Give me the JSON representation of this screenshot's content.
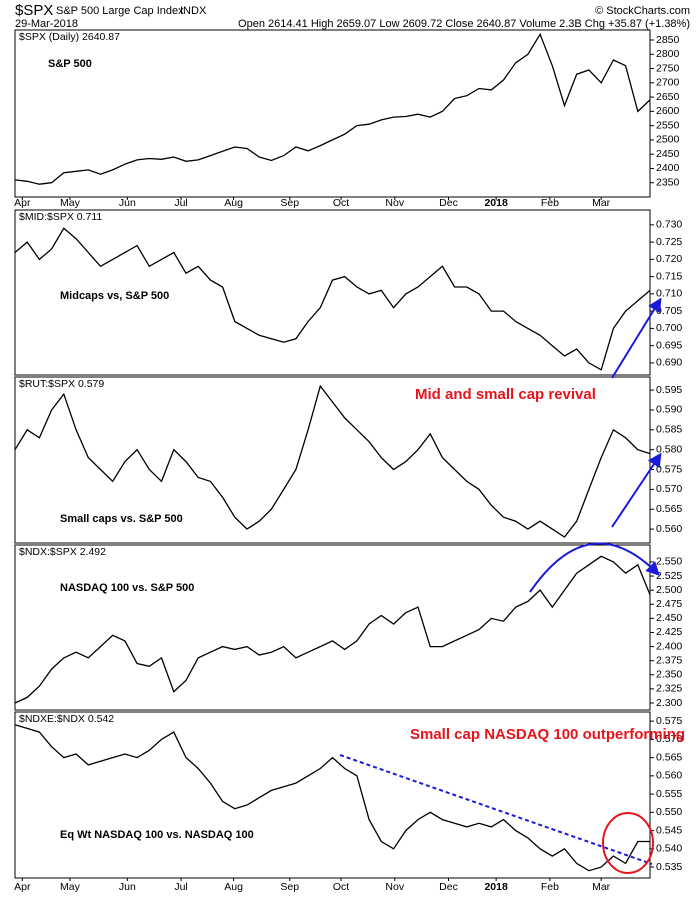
{
  "header": {
    "symbol": "$SPX",
    "name": "S&P 500 Large Cap Index",
    "exchange": "INDX",
    "date": "29-Mar-2018",
    "quote": "Open 2614.41  High 2659.07  Low 2609.72  Close 2640.87  Volume 2.3B  Chg +35.87 (+1.38%)",
    "credit": "© StockCharts.com"
  },
  "chart_data": [
    {
      "type": "line",
      "legend": "$SPX (Daily) 2640.87",
      "label": "S&P 500",
      "color": "#000000",
      "xlim": [
        0,
        52
      ],
      "xticks": [
        {
          "value": 0.6,
          "label": "Apr"
        },
        {
          "value": 4.5,
          "label": "May"
        },
        {
          "value": 9.2,
          "label": "Jun"
        },
        {
          "value": 13.6,
          "label": "Jul"
        },
        {
          "value": 17.9,
          "label": "Aug"
        },
        {
          "value": 22.5,
          "label": "Sep"
        },
        {
          "value": 26.7,
          "label": "Oct"
        },
        {
          "value": 31.1,
          "label": "Nov"
        },
        {
          "value": 35.5,
          "label": "Dec"
        },
        {
          "value": 39.4,
          "label": "2018"
        },
        {
          "value": 43.8,
          "label": "Feb"
        },
        {
          "value": 48.0,
          "label": "Mar"
        }
      ],
      "ylim": [
        2300,
        2885
      ],
      "yticks": [
        2350,
        2400,
        2450,
        2500,
        2550,
        2600,
        2650,
        2700,
        2750,
        2800,
        2850
      ],
      "values": [
        2360,
        2355,
        2345,
        2350,
        2385,
        2390,
        2395,
        2380,
        2395,
        2415,
        2430,
        2435,
        2432,
        2440,
        2425,
        2430,
        2445,
        2460,
        2475,
        2470,
        2440,
        2428,
        2445,
        2475,
        2462,
        2480,
        2500,
        2520,
        2550,
        2555,
        2570,
        2580,
        2582,
        2590,
        2580,
        2600,
        2645,
        2655,
        2680,
        2675,
        2710,
        2770,
        2800,
        2870,
        2760,
        2620,
        2730,
        2745,
        2700,
        2780,
        2760,
        2600,
        2640
      ]
    },
    {
      "type": "line",
      "legend": "$MID:$SPX 0.711",
      "label": "Midcaps vs, S&P 500",
      "color": "#000000",
      "xlim": [
        0,
        52
      ],
      "ylim": [
        0.6865,
        0.7343
      ],
      "yticks": [
        {
          "value": 0.69,
          "label": "0.690"
        },
        {
          "value": 0.695,
          "label": "0.695"
        },
        {
          "value": 0.7,
          "label": "0.700"
        },
        {
          "value": 0.705,
          "label": "0.705"
        },
        {
          "value": 0.71,
          "label": "0.710"
        },
        {
          "value": 0.715,
          "label": "0.715"
        },
        {
          "value": 0.72,
          "label": "0.720"
        },
        {
          "value": 0.725,
          "label": "0.725"
        },
        {
          "value": 0.73,
          "label": "0.730"
        }
      ],
      "values": [
        0.722,
        0.725,
        0.72,
        0.723,
        0.729,
        0.726,
        0.722,
        0.718,
        0.72,
        0.722,
        0.724,
        0.718,
        0.72,
        0.722,
        0.716,
        0.718,
        0.714,
        0.712,
        0.702,
        0.7,
        0.698,
        0.697,
        0.696,
        0.697,
        0.702,
        0.706,
        0.714,
        0.715,
        0.712,
        0.71,
        0.711,
        0.706,
        0.71,
        0.712,
        0.715,
        0.718,
        0.712,
        0.712,
        0.71,
        0.705,
        0.705,
        0.702,
        0.7,
        0.698,
        0.695,
        0.692,
        0.694,
        0.69,
        0.688,
        0.7,
        0.705,
        0.708,
        0.711
      ]
    },
    {
      "type": "line",
      "legend": "$RUT:$SPX 0.579",
      "label": "Small caps vs. S&P 500",
      "color": "#000000",
      "annotations": [
        "Mid and small cap revival"
      ],
      "xlim": [
        0,
        52
      ],
      "ylim": [
        0.5565,
        0.5983
      ],
      "yticks": [
        {
          "value": 0.56,
          "label": "0.560"
        },
        {
          "value": 0.565,
          "label": "0.565"
        },
        {
          "value": 0.57,
          "label": "0.570"
        },
        {
          "value": 0.575,
          "label": "0.575"
        },
        {
          "value": 0.58,
          "label": "0.580"
        },
        {
          "value": 0.585,
          "label": "0.585"
        },
        {
          "value": 0.59,
          "label": "0.590"
        },
        {
          "value": 0.595,
          "label": "0.595"
        }
      ],
      "values": [
        0.58,
        0.585,
        0.583,
        0.59,
        0.594,
        0.585,
        0.578,
        0.575,
        0.572,
        0.577,
        0.58,
        0.575,
        0.572,
        0.58,
        0.577,
        0.573,
        0.572,
        0.568,
        0.563,
        0.56,
        0.562,
        0.565,
        0.57,
        0.575,
        0.585,
        0.596,
        0.592,
        0.588,
        0.585,
        0.582,
        0.578,
        0.575,
        0.577,
        0.58,
        0.584,
        0.578,
        0.575,
        0.572,
        0.57,
        0.566,
        0.563,
        0.562,
        0.56,
        0.562,
        0.56,
        0.558,
        0.562,
        0.57,
        0.578,
        0.585,
        0.583,
        0.58,
        0.579
      ]
    },
    {
      "type": "line",
      "legend": "$NDX:$SPX 2.492",
      "label": "NASDAQ 100 vs. S&P 500",
      "color": "#000000",
      "xlim": [
        0,
        52
      ],
      "ylim": [
        2.2876,
        2.58
      ],
      "yticks": [
        {
          "value": 2.3,
          "label": "2.300"
        },
        2.325,
        {
          "value": 2.35,
          "label": "2.350"
        },
        2.375,
        {
          "value": 2.4,
          "label": "2.400"
        },
        2.425,
        {
          "value": 2.45,
          "label": "2.450"
        },
        2.475,
        {
          "value": 2.5,
          "label": "2.500"
        },
        2.525,
        {
          "value": 2.55,
          "label": "2.550"
        }
      ],
      "values": [
        2.3,
        2.31,
        2.33,
        2.36,
        2.38,
        2.39,
        2.38,
        2.4,
        2.42,
        2.41,
        2.37,
        2.365,
        2.38,
        2.32,
        2.34,
        2.38,
        2.39,
        2.4,
        2.395,
        2.4,
        2.385,
        2.39,
        2.4,
        2.38,
        2.39,
        2.4,
        2.41,
        2.395,
        2.41,
        2.44,
        2.455,
        2.44,
        2.46,
        2.47,
        2.4,
        2.4,
        2.41,
        2.42,
        2.43,
        2.45,
        2.445,
        2.47,
        2.48,
        2.5,
        2.47,
        2.5,
        2.53,
        2.545,
        2.56,
        2.55,
        2.53,
        2.545,
        2.492
      ]
    },
    {
      "type": "line",
      "legend": "$NDXE:$NDX 0.542",
      "label": "Eq Wt NASDAQ 100 vs. NASDAQ 100",
      "color": "#000000",
      "annotations": [
        "Small cap NASDAQ 100 outperforming"
      ],
      "xlim": [
        0,
        52
      ],
      "xticks": [
        {
          "value": 0.6,
          "label": "Apr"
        },
        {
          "value": 4.5,
          "label": "May"
        },
        {
          "value": 9.2,
          "label": "Jun"
        },
        {
          "value": 13.6,
          "label": "Jul"
        },
        {
          "value": 17.9,
          "label": "Aug"
        },
        {
          "value": 22.5,
          "label": "Sep"
        },
        {
          "value": 26.7,
          "label": "Oct"
        },
        {
          "value": 31.1,
          "label": "Nov"
        },
        {
          "value": 35.5,
          "label": "Dec"
        },
        {
          "value": 39.4,
          "label": "2018"
        },
        {
          "value": 43.8,
          "label": "Feb"
        },
        {
          "value": 48.0,
          "label": "Mar"
        }
      ],
      "ylim": [
        0.532,
        0.5775
      ],
      "yticks": [
        {
          "value": 0.535,
          "label": "0.535"
        },
        {
          "value": 0.54,
          "label": "0.540"
        },
        {
          "value": 0.545,
          "label": "0.545"
        },
        {
          "value": 0.55,
          "label": "0.550"
        },
        {
          "value": 0.555,
          "label": "0.555"
        },
        {
          "value": 0.56,
          "label": "0.560"
        },
        {
          "value": 0.565,
          "label": "0.565"
        },
        {
          "value": 0.57,
          "label": "0.570"
        },
        {
          "value": 0.575,
          "label": "0.575"
        }
      ],
      "values": [
        0.574,
        0.573,
        0.572,
        0.568,
        0.565,
        0.566,
        0.563,
        0.564,
        0.565,
        0.566,
        0.565,
        0.567,
        0.57,
        0.572,
        0.565,
        0.562,
        0.558,
        0.553,
        0.551,
        0.552,
        0.554,
        0.556,
        0.557,
        0.558,
        0.56,
        0.562,
        0.565,
        0.562,
        0.56,
        0.548,
        0.542,
        0.54,
        0.545,
        0.548,
        0.55,
        0.548,
        0.547,
        0.546,
        0.547,
        0.546,
        0.548,
        0.545,
        0.543,
        0.54,
        0.538,
        0.54,
        0.536,
        0.534,
        0.535,
        0.538,
        0.536,
        0.542,
        0.542
      ]
    }
  ]
}
